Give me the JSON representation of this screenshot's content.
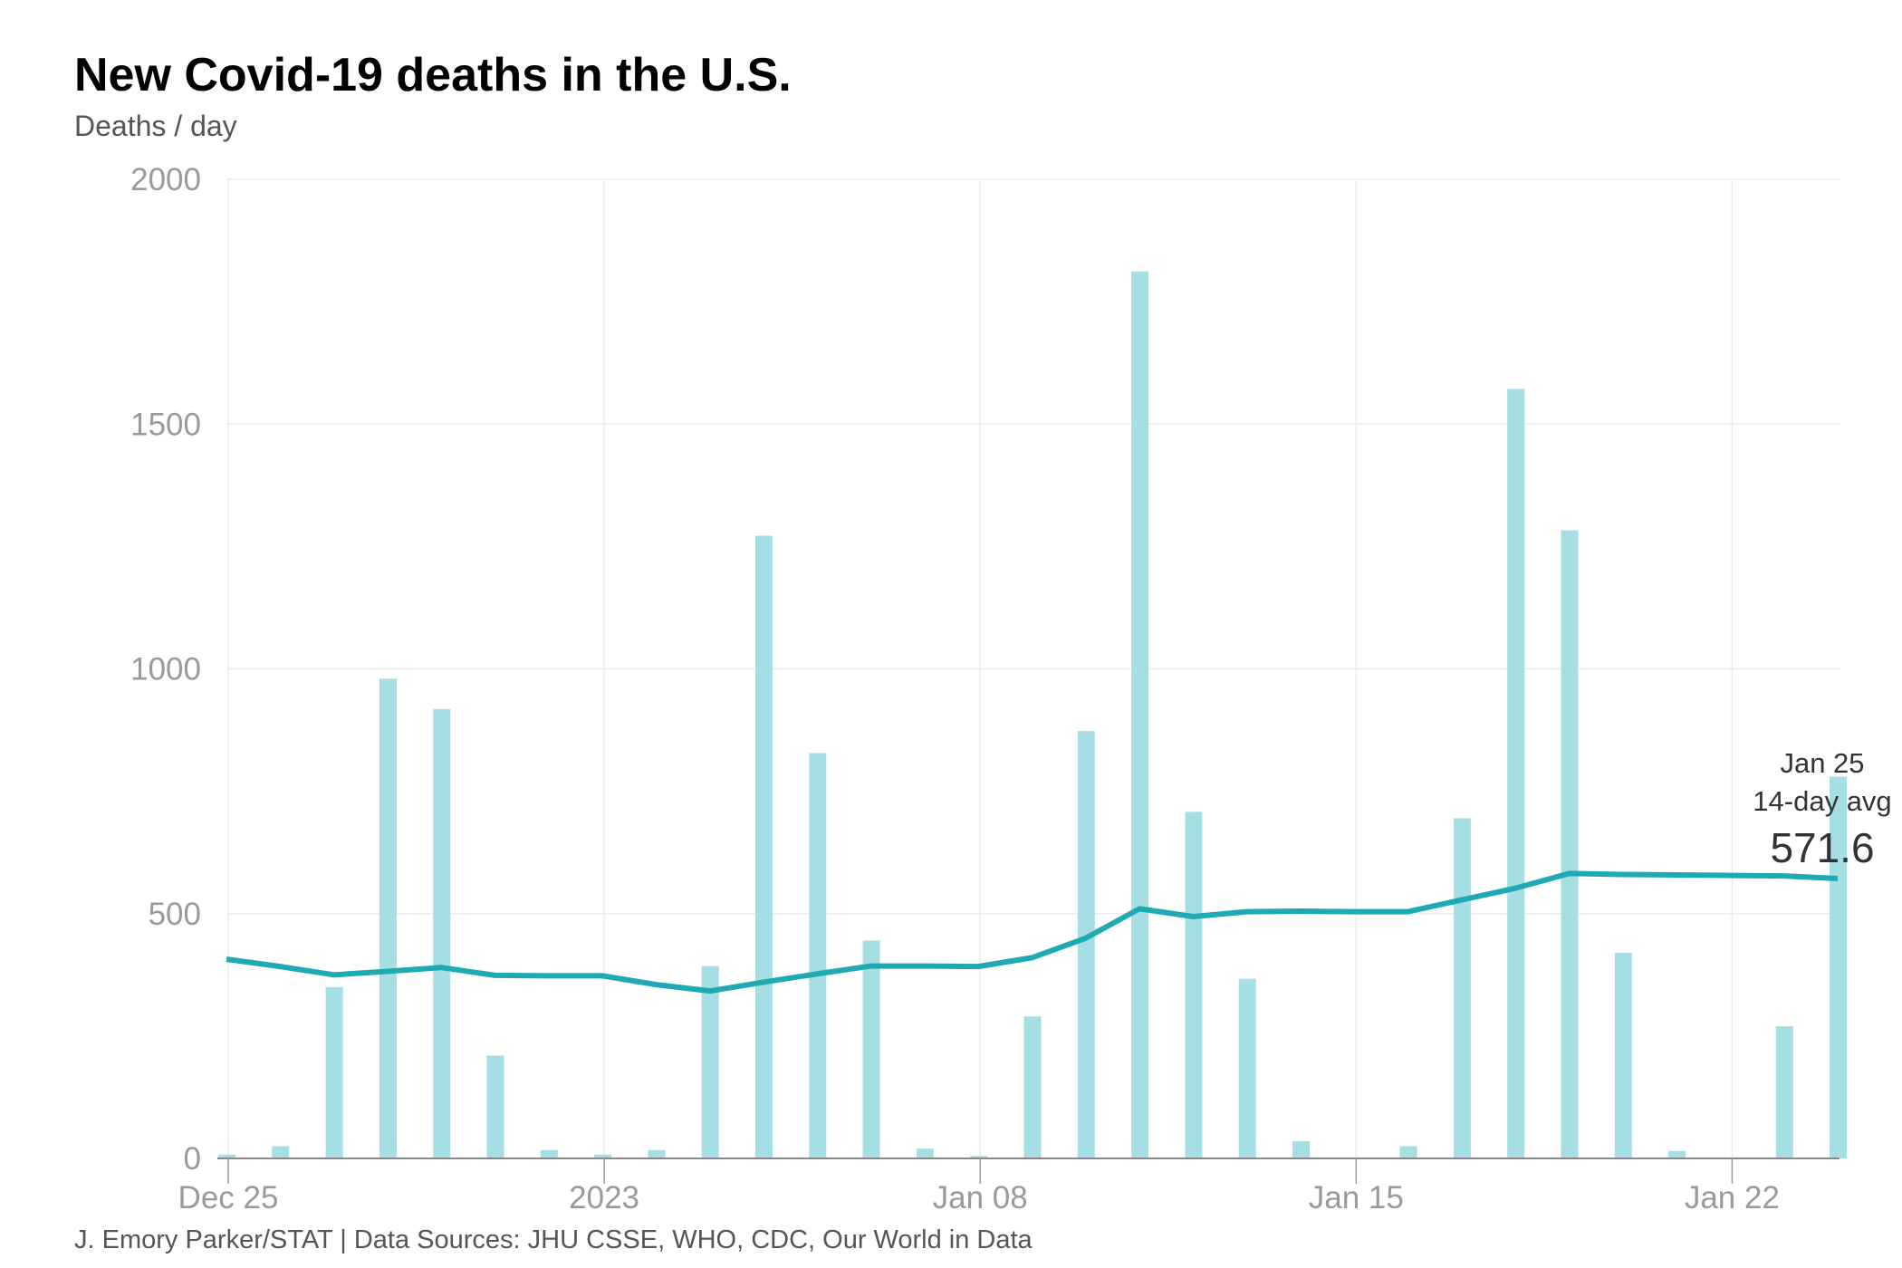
{
  "chart_data": {
    "type": "bar",
    "title": "New Covid-19 deaths in the U.S.",
    "subtitle": "Deaths / day",
    "footer": "J. Emory Parker/STAT | Data Sources: JHU CSSE, WHO, CDC, Our World in Data",
    "ylim": [
      0,
      2000
    ],
    "yticks": [
      0,
      500,
      1000,
      1500,
      2000
    ],
    "xticks": [
      {
        "day": 0,
        "label": "Dec 25"
      },
      {
        "day": 7,
        "label": "2023"
      },
      {
        "day": 14,
        "label": "Jan 08"
      },
      {
        "day": 21,
        "label": "Jan 15"
      },
      {
        "day": 28,
        "label": "Jan 22"
      }
    ],
    "grid": true,
    "dates": [
      "Dec 25",
      "Dec 26",
      "Dec 27",
      "Dec 28",
      "Dec 29",
      "Dec 30",
      "Dec 31",
      "Jan 01",
      "Jan 02",
      "Jan 03",
      "Jan 04",
      "Jan 05",
      "Jan 06",
      "Jan 07",
      "Jan 08",
      "Jan 09",
      "Jan 10",
      "Jan 11",
      "Jan 12",
      "Jan 13",
      "Jan 14",
      "Jan 15",
      "Jan 16",
      "Jan 17",
      "Jan 18",
      "Jan 19",
      "Jan 20",
      "Jan 21",
      "Jan 22",
      "Jan 23",
      "Jan 24"
    ],
    "series": [
      {
        "type": "bar",
        "color": "#a6dfe3",
        "values": [
          8,
          25,
          350,
          980,
          918,
          210,
          17,
          8,
          17,
          393,
          1272,
          828,
          445,
          20,
          5,
          290,
          873,
          1812,
          708,
          367,
          35,
          0,
          25,
          695,
          1572,
          1283,
          420,
          15,
          0,
          270,
          780
        ]
      },
      {
        "type": "line",
        "color": "#1eaab2",
        "values": [
          407,
          392,
          375,
          382,
          390,
          374,
          373,
          373,
          355,
          342,
          360,
          377,
          393,
          393,
          392,
          410,
          450,
          510,
          494,
          504,
          505,
          504,
          504,
          528,
          552,
          582,
          580,
          579,
          578,
          577,
          571.6
        ]
      }
    ],
    "annotation": {
      "date": "Jan 25",
      "label": "14-day avg",
      "value": "571.6"
    }
  }
}
